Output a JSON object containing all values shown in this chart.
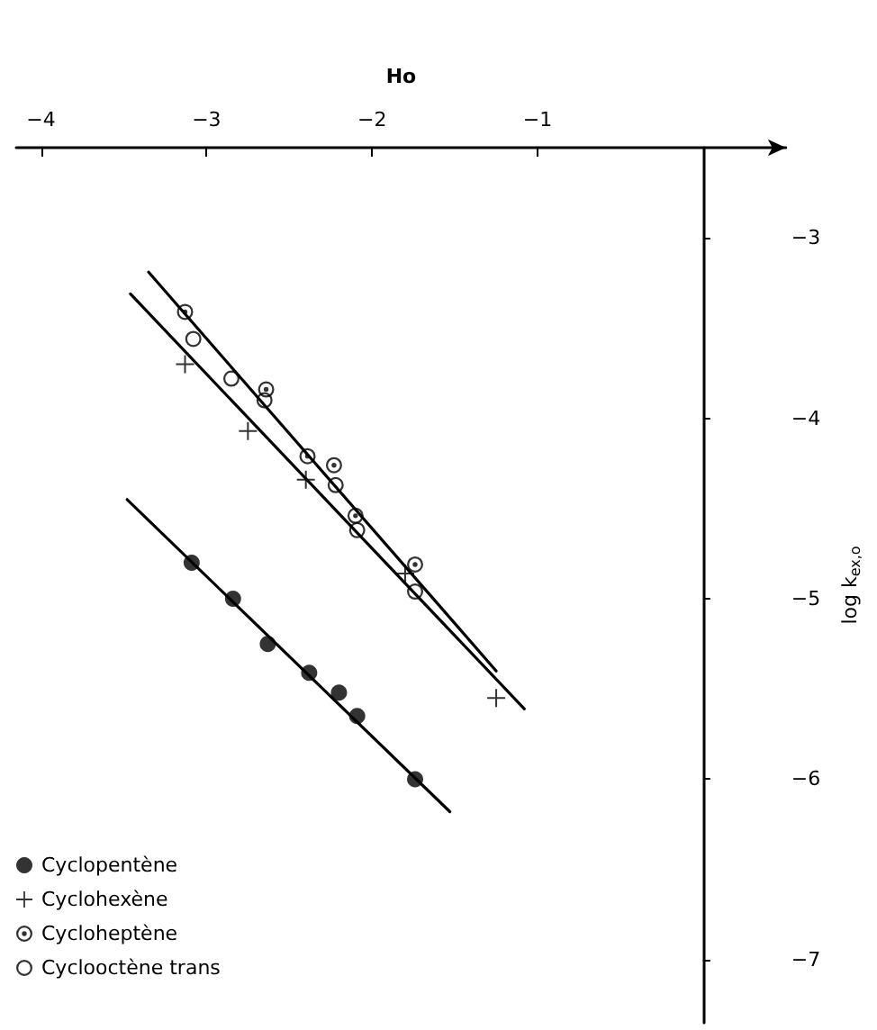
{
  "chart_data": {
    "type": "scatter",
    "xlabel": "Ho",
    "ylabel": "log k$_{ex,o}$",
    "xlim": [
      -4.15,
      0.5
    ],
    "xticks": [
      -4,
      -3,
      -2,
      -1
    ],
    "ylim": [
      -7.35,
      -2.5
    ],
    "yticks": [
      -3,
      -4,
      -5,
      -6,
      -7
    ],
    "grid": false,
    "legend": "bottom left",
    "series": [
      {
        "name": "Cyclopentène",
        "marker": "circle",
        "color": "#000000",
        "x": [
          -3.09,
          -2.84,
          -2.63,
          -2.38,
          -2.2,
          -2.09,
          -1.74
        ],
        "values": [
          -4.8,
          -5.0,
          -5.25,
          -5.41,
          -5.52,
          -5.65,
          -6.0
        ]
      },
      {
        "name": "Cyclohexène",
        "marker": "cross",
        "color": "#000000",
        "x": [
          -3.13,
          -2.75,
          -2.4,
          -1.8,
          -1.25
        ],
        "values": [
          -3.7,
          -4.07,
          -4.34,
          -4.86,
          -5.55
        ]
      },
      {
        "name": "Cycloheptène",
        "marker": "circle-dot",
        "color": "#000000",
        "x": [
          -3.13,
          -2.64,
          -2.39,
          -2.23,
          -2.1,
          -1.74
        ],
        "values": [
          -3.41,
          -3.84,
          -4.21,
          -4.26,
          -4.54,
          -4.81
        ]
      },
      {
        "name": "Cyclooctène trans",
        "marker": "circle-open",
        "color": "#000000",
        "x": [
          -3.08,
          -2.85,
          -2.65,
          -2.22,
          -2.09,
          -1.74
        ],
        "values": [
          -3.56,
          -3.78,
          -3.9,
          -4.37,
          -4.62,
          -4.96
        ]
      },
      {
        "type": "line",
        "marker": "none",
        "line_style": "solid",
        "color": "#000000",
        "x": [
          -3.48,
          -1.53
        ],
        "values": [
          -4.45,
          -6.18
        ]
      },
      {
        "type": "line",
        "marker": "none",
        "line_style": "solid",
        "color": "#000000",
        "x": [
          -3.35,
          -1.25
        ],
        "values": [
          -3.19,
          -5.4
        ]
      },
      {
        "type": "line",
        "marker": "none",
        "line_style": "solid",
        "color": "#000000",
        "x": [
          -3.46,
          -1.08
        ],
        "values": [
          -3.31,
          -5.61
        ]
      }
    ]
  }
}
